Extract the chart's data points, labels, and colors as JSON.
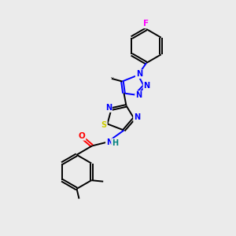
{
  "background_color": "#ebebeb",
  "atom_colors": {
    "C": "#000000",
    "N": "#0000ff",
    "O": "#ff0000",
    "S": "#cccc00",
    "F": "#ff00ff",
    "H": "#008080"
  },
  "figsize": [
    3.0,
    3.0
  ],
  "dpi": 100
}
